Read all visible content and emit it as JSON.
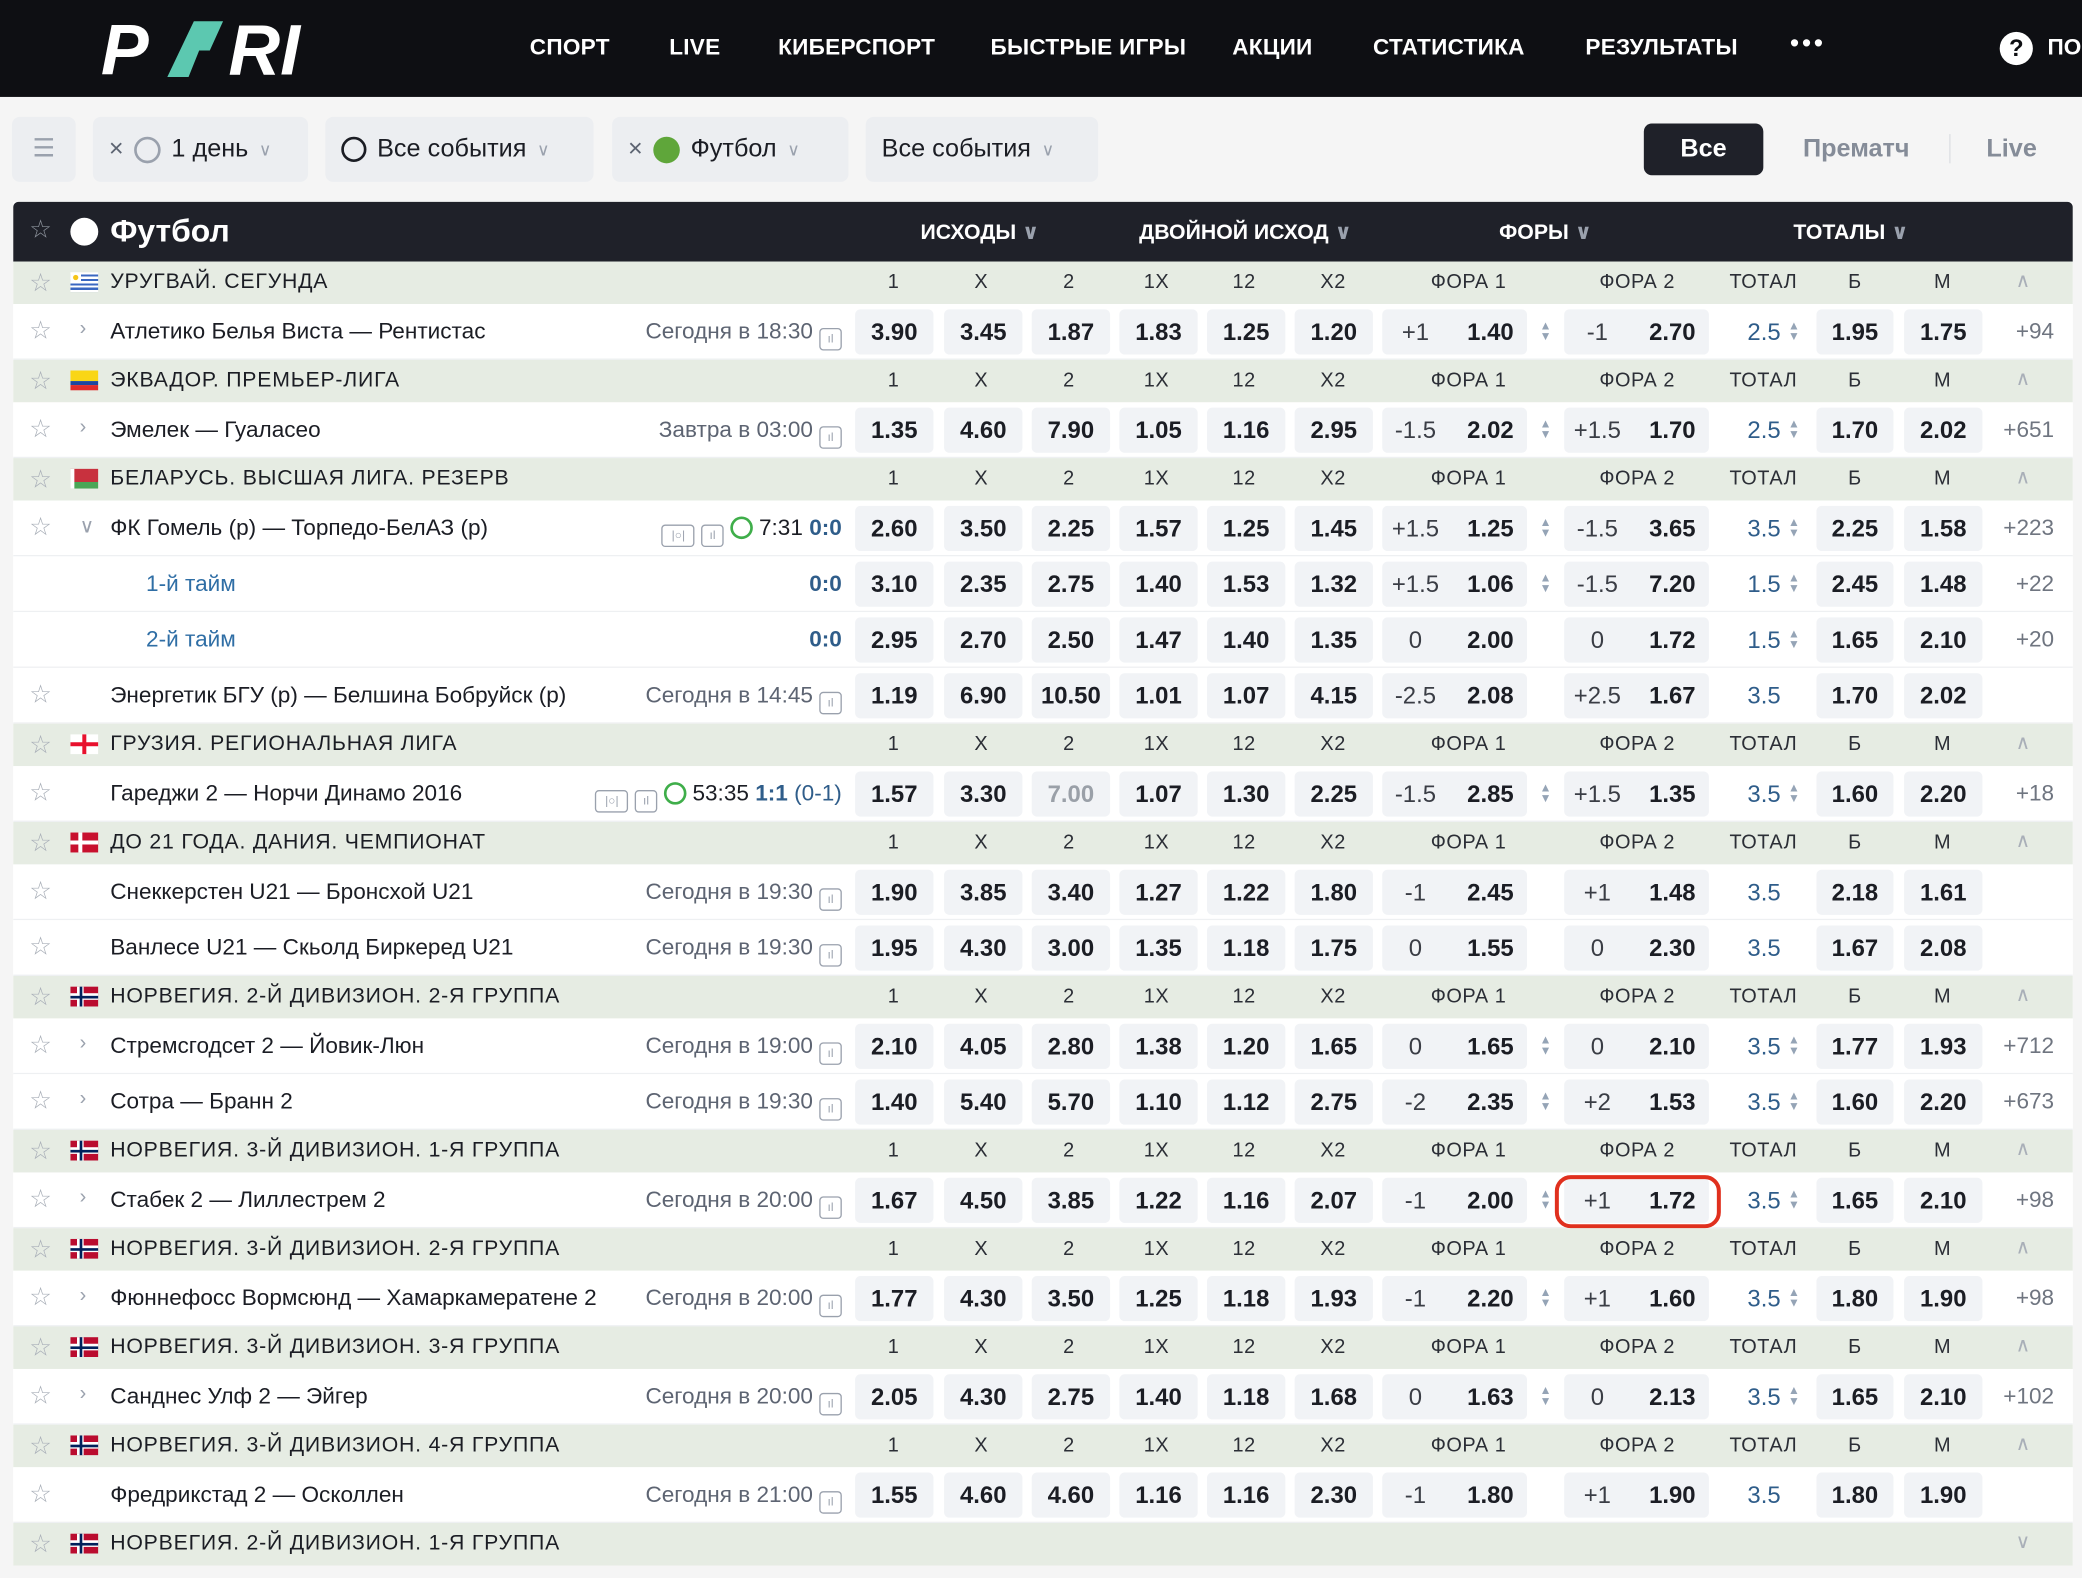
{
  "header": {
    "logo": "PARI",
    "nav": [
      "СПОРТ",
      "LIVE",
      "КИБЕРСПОРТ",
      "БЫСТРЫЕ ИГРЫ",
      "АКЦИИ",
      "СТАТИСТИКА",
      "РЕЗУЛЬТАТЫ"
    ],
    "more": "•••",
    "help_label": "ПО"
  },
  "filters": {
    "period": "1 день",
    "events": "Все события",
    "sport": "Футбол",
    "events2": "Все события",
    "modes": [
      "Все",
      "Прематч",
      "Live"
    ],
    "active_mode": "Все"
  },
  "colors": {
    "accent": "#5cc8b0",
    "highlight": "#e0301e",
    "link": "#2f5d8a",
    "live": "#3fae4a"
  },
  "sport": {
    "title": "Футбол",
    "groups": [
      "ИСХОДЫ",
      "ДВОЙНОЙ ИСХОД",
      "ФОРЫ",
      "ТОТАЛЫ"
    ]
  },
  "col_heads": [
    "1",
    "X",
    "2",
    "1X",
    "12",
    "X2",
    "ФОРА 1",
    "ФОРА 2",
    "ТОТАЛ",
    "Б",
    "М"
  ],
  "leagues": [
    {
      "name": "УРУГВАЙ. СЕГУНДА",
      "flag": "uruguay",
      "matches": [
        {
          "teams": "Атлетико Белья Виста — Рентистас",
          "time": "Сегодня в 18:30",
          "exp": "right",
          "odds": [
            "3.90",
            "3.45",
            "1.87",
            "1.83",
            "1.25",
            "1.20"
          ],
          "f1": [
            "+1",
            "1.40"
          ],
          "f2": [
            "-1",
            "2.70"
          ],
          "total": "2.5",
          "over": "1.95",
          "under": "1.75",
          "more": "+94",
          "arrows": true
        }
      ]
    },
    {
      "name": "ЭКВАДОР. ПРЕМЬЕР-ЛИГА",
      "flag": "ecuador",
      "matches": [
        {
          "teams": "Эмелек — Гуаласео",
          "time": "Завтра в 03:00",
          "exp": "right",
          "odds": [
            "1.35",
            "4.60",
            "7.90",
            "1.05",
            "1.16",
            "2.95"
          ],
          "f1": [
            "-1.5",
            "2.02"
          ],
          "f2": [
            "+1.5",
            "1.70"
          ],
          "total": "2.5",
          "over": "1.70",
          "under": "2.02",
          "more": "+651",
          "arrows": true
        }
      ]
    },
    {
      "name": "БЕЛАРУСЬ. ВЫСШАЯ ЛИГА. РЕЗЕРВ",
      "flag": "belarus",
      "matches": [
        {
          "teams": "ФК Гомель (р) — Торпедо-БелАЗ (р)",
          "live": {
            "clock": "7:31",
            "score": "0:0"
          },
          "exp": "down",
          "odds": [
            "2.60",
            "3.50",
            "2.25",
            "1.57",
            "1.25",
            "1.45"
          ],
          "f1": [
            "+1.5",
            "1.25"
          ],
          "f2": [
            "-1.5",
            "3.65"
          ],
          "total": "3.5",
          "over": "2.25",
          "under": "1.58",
          "more": "+223",
          "arrows": true
        },
        {
          "teams": "1-й тайм",
          "sub": true,
          "score": "0:0",
          "odds": [
            "3.10",
            "2.35",
            "2.75",
            "1.40",
            "1.53",
            "1.32"
          ],
          "f1": [
            "+1.5",
            "1.06"
          ],
          "f2": [
            "-1.5",
            "7.20"
          ],
          "total": "1.5",
          "over": "2.45",
          "under": "1.48",
          "more": "+22",
          "arrows": true
        },
        {
          "teams": "2-й тайм",
          "sub": true,
          "score": "0:0",
          "odds": [
            "2.95",
            "2.70",
            "2.50",
            "1.47",
            "1.40",
            "1.35"
          ],
          "f1": [
            "0",
            "2.00"
          ],
          "f2": [
            "0",
            "1.72"
          ],
          "total": "1.5",
          "over": "1.65",
          "under": "2.10",
          "more": "+20",
          "arrows": false,
          "tarrow": true
        },
        {
          "teams": "Энергетик БГУ (р) — Белшина Бобруйск (р)",
          "time": "Сегодня в 14:45",
          "odds": [
            "1.19",
            "6.90",
            "10.50",
            "1.01",
            "1.07",
            "4.15"
          ],
          "f1": [
            "-2.5",
            "2.08"
          ],
          "f2": [
            "+2.5",
            "1.67"
          ],
          "total": "3.5",
          "over": "1.70",
          "under": "2.02",
          "more": "",
          "arrows": false
        }
      ]
    },
    {
      "name": "ГРУЗИЯ. РЕГИОНАЛЬНАЯ ЛИГА",
      "flag": "georgia",
      "matches": [
        {
          "teams": "Гареджи 2 — Норчи Динамо 2016",
          "live": {
            "clock": "53:35",
            "score": "1:1",
            "half": "(0-1)"
          },
          "odds": [
            "1.57",
            "3.30",
            "7.00",
            "1.07",
            "1.30",
            "2.25"
          ],
          "dim": 2,
          "f1": [
            "-1.5",
            "2.85"
          ],
          "f2": [
            "+1.5",
            "1.35"
          ],
          "total": "3.5",
          "over": "1.60",
          "under": "2.20",
          "more": "+18",
          "arrows": true
        }
      ]
    },
    {
      "name": "ДО 21 ГОДА. ДАНИЯ. ЧЕМПИОНАТ",
      "flag": "denmark",
      "matches": [
        {
          "teams": "Снеккерстен U21 — Бронсхой U21",
          "time": "Сегодня в 19:30",
          "odds": [
            "1.90",
            "3.85",
            "3.40",
            "1.27",
            "1.22",
            "1.80"
          ],
          "f1": [
            "-1",
            "2.45"
          ],
          "f2": [
            "+1",
            "1.48"
          ],
          "total": "3.5",
          "over": "2.18",
          "under": "1.61",
          "more": "",
          "arrows": false
        },
        {
          "teams": "Ванлесе U21 — Скьолд Биркеред U21",
          "time": "Сегодня в 19:30",
          "odds": [
            "1.95",
            "4.30",
            "3.00",
            "1.35",
            "1.18",
            "1.75"
          ],
          "f1": [
            "0",
            "1.55"
          ],
          "f2": [
            "0",
            "2.30"
          ],
          "total": "3.5",
          "over": "1.67",
          "under": "2.08",
          "more": "",
          "arrows": false
        }
      ]
    },
    {
      "name": "НОРВЕГИЯ. 2-Й ДИВИЗИОН. 2-Я ГРУППА",
      "flag": "norway",
      "matches": [
        {
          "teams": "Стремсгодсет 2 — Йовик-Люн",
          "time": "Сегодня в 19:00",
          "exp": "right",
          "odds": [
            "2.10",
            "4.05",
            "2.80",
            "1.38",
            "1.20",
            "1.65"
          ],
          "f1": [
            "0",
            "1.65"
          ],
          "f2": [
            "0",
            "2.10"
          ],
          "total": "3.5",
          "over": "1.77",
          "under": "1.93",
          "more": "+712",
          "arrows": true
        },
        {
          "teams": "Сотра — Бранн 2",
          "time": "Сегодня в 19:30",
          "exp": "right",
          "odds": [
            "1.40",
            "5.40",
            "5.70",
            "1.10",
            "1.12",
            "2.75"
          ],
          "f1": [
            "-2",
            "2.35"
          ],
          "f2": [
            "+2",
            "1.53"
          ],
          "total": "3.5",
          "over": "1.60",
          "under": "2.20",
          "more": "+673",
          "arrows": true
        }
      ]
    },
    {
      "name": "НОРВЕГИЯ. 3-Й ДИВИЗИОН. 1-Я ГРУППА",
      "flag": "norway",
      "matches": [
        {
          "teams": "Стабек 2 — Лиллестрем 2",
          "time": "Сегодня в 20:00",
          "exp": "right",
          "odds": [
            "1.67",
            "4.50",
            "3.85",
            "1.22",
            "1.16",
            "2.07"
          ],
          "f1": [
            "-1",
            "2.00"
          ],
          "f2": [
            "+1",
            "1.72"
          ],
          "total": "3.5",
          "over": "1.65",
          "under": "2.10",
          "more": "+98",
          "arrows": true,
          "highlight": true
        }
      ]
    },
    {
      "name": "НОРВЕГИЯ. 3-Й ДИВИЗИОН. 2-Я ГРУППА",
      "flag": "norway",
      "matches": [
        {
          "teams": "Фюннефосс Вормсюнд — Хамаркамератене 2",
          "time": "Сегодня в 20:00",
          "exp": "right",
          "odds": [
            "1.77",
            "4.30",
            "3.50",
            "1.25",
            "1.18",
            "1.93"
          ],
          "f1": [
            "-1",
            "2.20"
          ],
          "f2": [
            "+1",
            "1.60"
          ],
          "total": "3.5",
          "over": "1.80",
          "under": "1.90",
          "more": "+98",
          "arrows": true
        }
      ]
    },
    {
      "name": "НОРВЕГИЯ. 3-Й ДИВИЗИОН. 3-Я ГРУППА",
      "flag": "norway",
      "matches": [
        {
          "teams": "Санднес Улф 2 — Эйгер",
          "time": "Сегодня в 20:00",
          "exp": "right",
          "odds": [
            "2.05",
            "4.30",
            "2.75",
            "1.40",
            "1.18",
            "1.68"
          ],
          "f1": [
            "0",
            "1.63"
          ],
          "f2": [
            "0",
            "2.13"
          ],
          "total": "3.5",
          "over": "1.65",
          "under": "2.10",
          "more": "+102",
          "arrows": true
        }
      ]
    },
    {
      "name": "НОРВЕГИЯ. 3-Й ДИВИЗИОН. 4-Я ГРУППА",
      "flag": "norway",
      "matches": [
        {
          "teams": "Фредрикстад 2 — Осколлен",
          "time": "Сегодня в 21:00",
          "odds": [
            "1.55",
            "4.60",
            "4.60",
            "1.16",
            "1.16",
            "2.30"
          ],
          "f1": [
            "-1",
            "1.80"
          ],
          "f2": [
            "+1",
            "1.90"
          ],
          "total": "3.5",
          "over": "1.80",
          "under": "1.90",
          "more": "",
          "arrows": false
        }
      ]
    },
    {
      "name": "НОРВЕГИЯ. 2-Й ДИВИЗИОН. 1-Я ГРУППА",
      "flag": "norway",
      "collapsed": true,
      "matches": []
    }
  ]
}
